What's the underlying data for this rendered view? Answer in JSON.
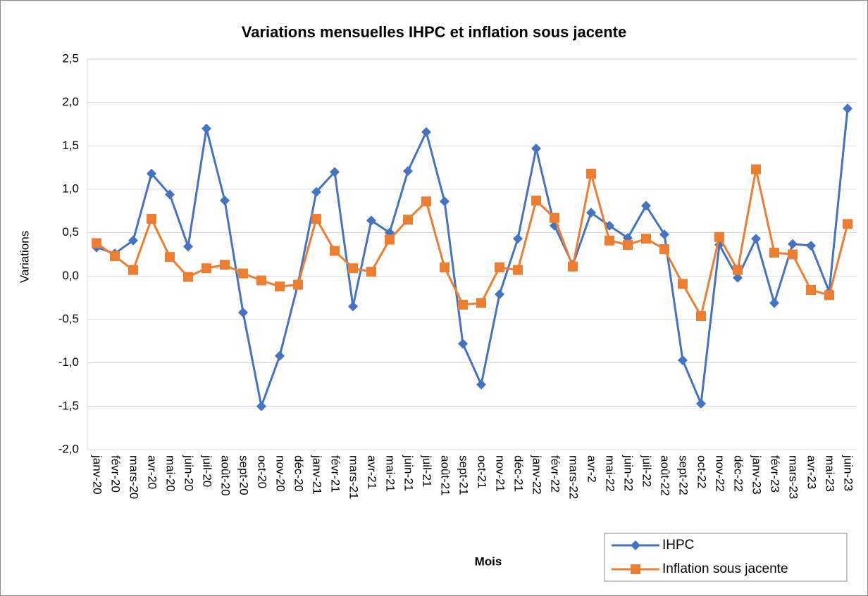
{
  "chart_data": {
    "type": "line",
    "title": "Variations mensuelles IHPC et inflation sous jacente",
    "x_label": "Mois",
    "y_label": "Variations",
    "categories": [
      "janv-20",
      "févr-20",
      "mars-20",
      "avr-20",
      "mai-20",
      "juin-20",
      "juil-20",
      "août-20",
      "sept-20",
      "oct-20",
      "nov-20",
      "déc-20",
      "janv-21",
      "févr-21",
      "mars-21",
      "avr-21",
      "mai-21",
      "juin-21",
      "juil-21",
      "août-21",
      "sept-21",
      "oct-21",
      "nov-21",
      "déc-21",
      "janv-22",
      "févr-22",
      "mars-22",
      "avr-2",
      "mai-22",
      "juin-22",
      "juil-22",
      "août-22",
      "sept-22",
      "oct-22",
      "nov-22",
      "déc-22",
      "janv-23",
      "févr-23",
      "mars-23",
      "avr-23",
      "mai-23",
      "juin-23"
    ],
    "series": [
      {
        "name": "IHPC",
        "color": "#4472c4",
        "marker": "diamond",
        "values": [
          0.33,
          0.26,
          0.41,
          1.18,
          0.94,
          0.34,
          1.7,
          0.87,
          -0.42,
          -1.5,
          -0.92,
          -0.09,
          0.97,
          1.2,
          -0.35,
          0.64,
          0.5,
          1.21,
          1.66,
          0.86,
          -0.78,
          -1.25,
          -0.21,
          0.43,
          1.47,
          0.58,
          0.13,
          0.73,
          0.58,
          0.44,
          0.81,
          0.48,
          -0.97,
          -1.47,
          0.36,
          -0.02,
          0.43,
          -0.31,
          0.37,
          0.35,
          -0.18,
          1.93
        ]
      },
      {
        "name": "Inflation sous jacente",
        "color": "#ed7d31",
        "marker": "square",
        "values": [
          0.38,
          0.23,
          0.07,
          0.66,
          0.22,
          -0.01,
          0.09,
          0.13,
          0.03,
          -0.05,
          -0.12,
          -0.1,
          0.66,
          0.29,
          0.09,
          0.05,
          0.42,
          0.65,
          0.86,
          0.1,
          -0.33,
          -0.31,
          0.1,
          0.07,
          0.87,
          0.67,
          0.11,
          1.18,
          0.41,
          0.36,
          0.43,
          0.31,
          -0.09,
          -0.46,
          0.45,
          0.07,
          1.23,
          0.27,
          0.25,
          -0.16,
          -0.22,
          0.6
        ]
      }
    ],
    "ylim": [
      -2.0,
      2.5
    ],
    "yticks": [
      {
        "value": -2.0,
        "label": "-2,0"
      },
      {
        "value": -1.5,
        "label": "-1,5"
      },
      {
        "value": -1.0,
        "label": "-1,0"
      },
      {
        "value": -0.5,
        "label": "-0,5"
      },
      {
        "value": 0,
        "label": "0,0"
      },
      {
        "value": 0.5,
        "label": "0,5"
      },
      {
        "value": 1.0,
        "label": "1,0"
      },
      {
        "value": 1.5,
        "label": "1,5"
      },
      {
        "value": 2.0,
        "label": "2,0"
      },
      {
        "value": 2.5,
        "label": "2,5"
      }
    ],
    "grid": true,
    "legend": "lower right"
  }
}
